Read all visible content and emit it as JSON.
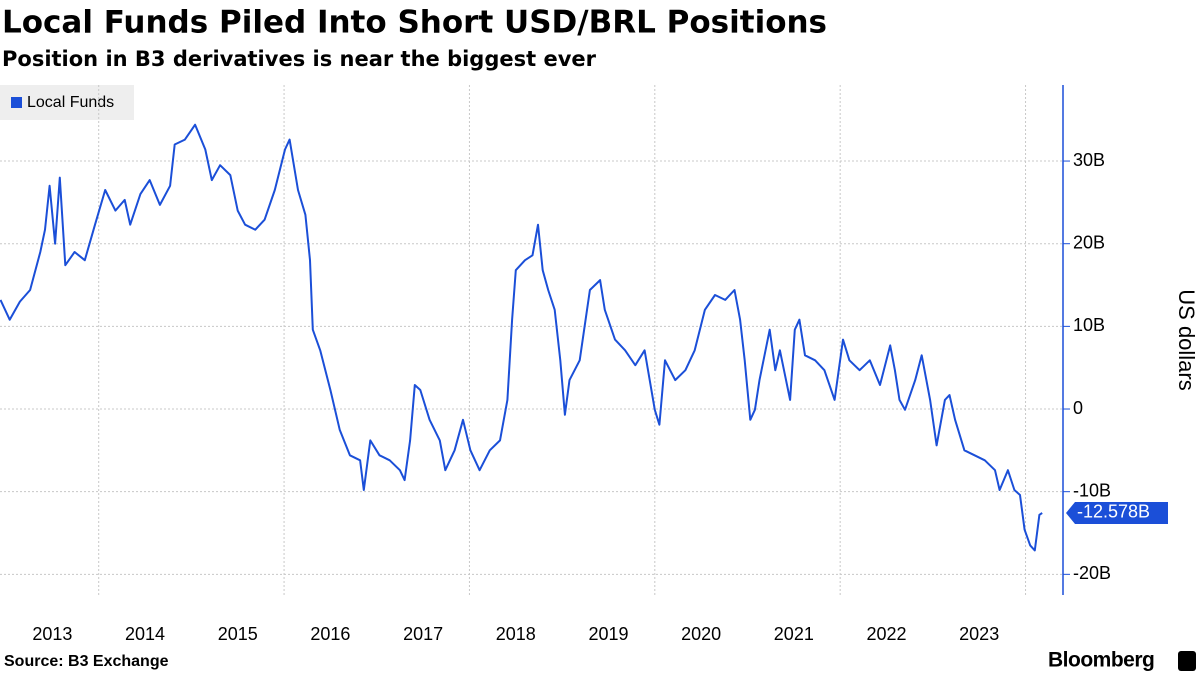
{
  "chart_data": {
    "type": "line",
    "title": "Local Funds Piled Into Short USD/BRL Positions",
    "subtitle": "Position in B3 derivatives is near the biggest ever",
    "y_axis_label": "US dollars",
    "source": "Source: B3 Exchange",
    "brand": "Bloomberg",
    "x": [
      2012.94,
      2013.04,
      2013.15,
      2013.26,
      2013.37,
      2013.42,
      2013.47,
      2013.53,
      2013.58,
      2013.64,
      2013.74,
      2013.85,
      2013.96,
      2014.07,
      2014.18,
      2014.28,
      2014.34,
      2014.45,
      2014.55,
      2014.66,
      2014.77,
      2014.82,
      2014.93,
      2015.04,
      2015.15,
      2015.22,
      2015.31,
      2015.42,
      2015.5,
      2015.58,
      2015.69,
      2015.79,
      2015.9,
      2016.01,
      2016.06,
      2016.15,
      2016.23,
      2016.28,
      2016.31,
      2016.39,
      2016.5,
      2016.6,
      2016.71,
      2016.82,
      2016.86,
      2016.93,
      2017.03,
      2017.14,
      2017.25,
      2017.3,
      2017.36,
      2017.41,
      2017.47,
      2017.57,
      2017.68,
      2017.74,
      2017.84,
      2017.93,
      2018.01,
      2018.11,
      2018.22,
      2018.33,
      2018.41,
      2018.46,
      2018.5,
      2018.6,
      2018.68,
      2018.74,
      2018.79,
      2018.85,
      2018.92,
      2018.98,
      2019.03,
      2019.08,
      2019.19,
      2019.3,
      2019.41,
      2019.46,
      2019.57,
      2019.68,
      2019.79,
      2019.89,
      2020.0,
      2020.05,
      2020.11,
      2020.22,
      2020.33,
      2020.43,
      2020.54,
      2020.65,
      2020.76,
      2020.86,
      2020.92,
      2020.97,
      2021.03,
      2021.08,
      2021.13,
      2021.24,
      2021.3,
      2021.35,
      2021.46,
      2021.51,
      2021.56,
      2021.62,
      2021.73,
      2021.83,
      2021.94,
      2022.03,
      2022.1,
      2022.21,
      2022.32,
      2022.43,
      2022.54,
      2022.59,
      2022.64,
      2022.7,
      2022.81,
      2022.88,
      2022.97,
      2023.04,
      2023.13,
      2023.18,
      2023.24,
      2023.34,
      2023.45,
      2023.56,
      2023.67,
      2023.72,
      2023.81,
      2023.88,
      2023.94,
      2023.99,
      2024.05,
      2024.1,
      2024.15,
      2024.18
    ],
    "series": [
      {
        "name": "Local Funds",
        "color": "#1b4fd8",
        "values": [
          13.2,
          10.8,
          13,
          14.4,
          19,
          21.7,
          27,
          20,
          28,
          17.4,
          19,
          18,
          22.3,
          26.5,
          24,
          25.3,
          22.3,
          26,
          27.7,
          24.7,
          27,
          32,
          32.6,
          34.4,
          31.4,
          27.7,
          29.5,
          28.3,
          24,
          22.3,
          21.7,
          22.9,
          26.5,
          31.4,
          32.6,
          26.5,
          23.5,
          18,
          9.6,
          7.1,
          2.3,
          -2.5,
          -5.6,
          -6.2,
          -9.8,
          -3.8,
          -5.6,
          -6.2,
          -7.4,
          -8.6,
          -3.8,
          2.9,
          2.3,
          -1.3,
          -3.8,
          -7.4,
          -5,
          -1.3,
          -5,
          -7.4,
          -5,
          -3.8,
          1.1,
          10.8,
          16.8,
          18,
          18.6,
          22.3,
          16.8,
          14.4,
          12,
          5.9,
          -0.7,
          3.5,
          5.9,
          14.4,
          15.6,
          12,
          8.4,
          7.1,
          5.3,
          7.1,
          -0.1,
          -1.9,
          5.9,
          3.5,
          4.7,
          7.1,
          12,
          13.8,
          13.2,
          14.4,
          10.8,
          5.9,
          -1.3,
          -0.1,
          3.5,
          9.6,
          4.7,
          7.1,
          1.1,
          9.6,
          10.8,
          6.5,
          5.9,
          4.7,
          1.1,
          8.4,
          5.9,
          4.7,
          5.9,
          2.9,
          7.7,
          4.7,
          1.1,
          -0.1,
          3.5,
          6.5,
          1.1,
          -4.4,
          1.1,
          1.7,
          -1.3,
          -5,
          -5.6,
          -6.2,
          -7.4,
          -9.8,
          -7.4,
          -9.8,
          -10.4,
          -14.6,
          -16.5,
          -17.1,
          -12.8,
          -12.578
        ],
        "last_value_label": "-12.578B"
      }
    ],
    "xlim": [
      2012.935,
      2024.21
    ],
    "xticks": [
      {
        "value": 2013.5,
        "label": "2013"
      },
      {
        "value": 2014.5,
        "label": "2014"
      },
      {
        "value": 2015.5,
        "label": "2015"
      },
      {
        "value": 2016.5,
        "label": "2016"
      },
      {
        "value": 2017.5,
        "label": "2017"
      },
      {
        "value": 2018.5,
        "label": "2018"
      },
      {
        "value": 2019.5,
        "label": "2019"
      },
      {
        "value": 2020.5,
        "label": "2020"
      },
      {
        "value": 2021.5,
        "label": "2021"
      },
      {
        "value": 2022.5,
        "label": "2022"
      },
      {
        "value": 2023.5,
        "label": "2023"
      }
    ],
    "xgrid": [
      2014,
      2016,
      2018,
      2020,
      2022,
      2024
    ],
    "ylim": [
      -22.5,
      39.2
    ],
    "yticks": [
      {
        "value": -20,
        "label": "-20B"
      },
      {
        "value": -10,
        "label": "-10B"
      },
      0,
      {
        "value": 10,
        "label": "10B"
      },
      {
        "value": 20,
        "label": "20B"
      },
      {
        "value": 30,
        "label": "30B"
      }
    ],
    "grid": true,
    "legend": "top-left"
  }
}
